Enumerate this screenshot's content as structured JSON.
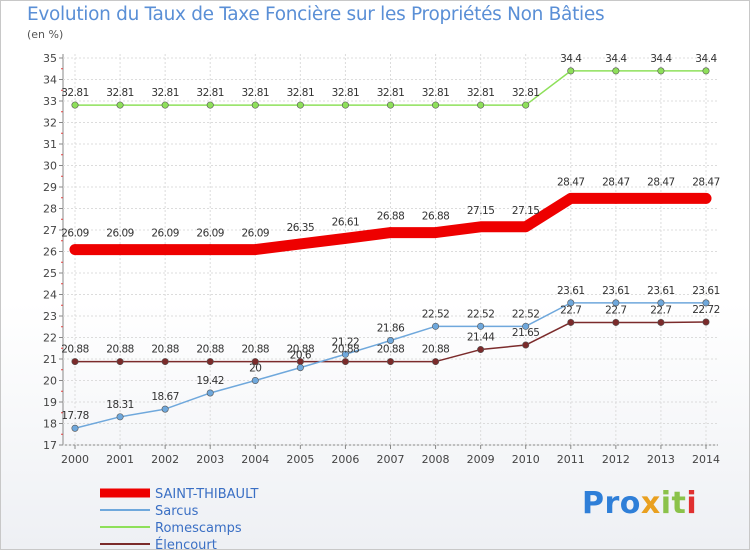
{
  "title": "Evolution du Taux de Taxe Foncière sur les Propriétés Non Bâties",
  "unit_label": "(en %)",
  "logo_text": [
    "Pro",
    "x",
    "it",
    "i"
  ],
  "chart_data": {
    "type": "line",
    "title": "Evolution du Taux de Taxe Foncière sur les Propriétés Non Bâties",
    "ylabel": "(en %)",
    "xlabel": "",
    "ylim": [
      17,
      35
    ],
    "yticks": [
      17,
      18,
      19,
      20,
      21,
      22,
      23,
      24,
      25,
      26,
      27,
      28,
      29,
      30,
      31,
      32,
      33,
      34,
      35
    ],
    "x": [
      "2000",
      "2001",
      "2002",
      "2003",
      "2004",
      "2005",
      "2006",
      "2007",
      "2008",
      "2009",
      "2010",
      "2011",
      "2012",
      "2013",
      "2014"
    ],
    "grid": true,
    "legend": "bottom-left",
    "series": [
      {
        "name": "SAINT-THIBAULT",
        "color": "#ee0000",
        "width": 11,
        "values": [
          26.09,
          26.09,
          26.09,
          26.09,
          26.09,
          26.35,
          26.61,
          26.88,
          26.88,
          27.15,
          27.15,
          28.47,
          28.47,
          28.47,
          28.47
        ],
        "labels": [
          "26.09",
          "26.09",
          "26.09",
          "26.09",
          "26.09",
          "26.35",
          "26.61",
          "26.88",
          "26.88",
          "27.15",
          "27.15",
          "28.47",
          "28.47",
          "28.47",
          "28.47"
        ]
      },
      {
        "name": "Sarcus",
        "color": "#6fa8dc",
        "width": 1.5,
        "values": [
          17.78,
          18.31,
          18.67,
          19.42,
          20,
          20.6,
          21.22,
          21.86,
          22.52,
          22.52,
          22.52,
          23.61,
          23.61,
          23.61,
          23.61
        ],
        "labels": [
          "17.78",
          "18.31",
          "18.67",
          "19.42",
          "20",
          "20.6",
          "21.22",
          "21.86",
          "22.52",
          "22.52",
          "22.52",
          "23.61",
          "23.61",
          "23.61",
          "23.61"
        ]
      },
      {
        "name": "Romescamps",
        "color": "#8ee05a",
        "width": 1.5,
        "values": [
          32.81,
          32.81,
          32.81,
          32.81,
          32.81,
          32.81,
          32.81,
          32.81,
          32.81,
          32.81,
          32.81,
          34.4,
          34.4,
          34.4,
          34.4
        ],
        "labels": [
          "32.81",
          "32.81",
          "32.81",
          "32.81",
          "32.81",
          "32.81",
          "32.81",
          "32.81",
          "32.81",
          "32.81",
          "32.81",
          "34.4",
          "34.4",
          "34.4",
          "34.4"
        ]
      },
      {
        "name": "Élencourt",
        "color": "#7b2b2b",
        "width": 1.5,
        "values": [
          20.88,
          20.88,
          20.88,
          20.88,
          20.88,
          20.88,
          20.88,
          20.88,
          20.88,
          21.44,
          21.65,
          22.7,
          22.7,
          22.7,
          22.72
        ],
        "labels": [
          "20.88",
          "20.88",
          "20.88",
          "20.88",
          "20.88",
          "20.88",
          "20.88",
          "20.88",
          "20.88",
          "21.44",
          "21.65",
          "22.7",
          "22.7",
          "22.7",
          "22.72"
        ]
      }
    ]
  }
}
